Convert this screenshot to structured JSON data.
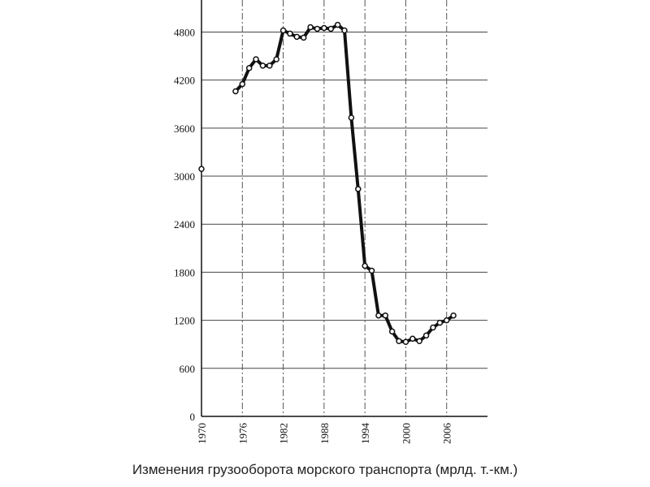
{
  "chart_data": {
    "type": "line",
    "title": "Изменения грузооборота морского транспорта (мрлд. т.-км.)",
    "x": [
      1970,
      1971,
      1972,
      1973,
      1974,
      1975,
      1976,
      1977,
      1978,
      1979,
      1980,
      1981,
      1982,
      1983,
      1984,
      1985,
      1986,
      1987,
      1988,
      1989,
      1990,
      1991,
      1992,
      1993,
      1994,
      1995,
      1996,
      1997,
      1998,
      1999,
      2000,
      2001,
      2002,
      2003,
      2004,
      2005,
      2006,
      2007
    ],
    "series": [
      {
        "color": "#111111",
        "values": [
          3090,
          null,
          null,
          null,
          null,
          4060,
          4150,
          4350,
          4460,
          4380,
          4380,
          4460,
          4820,
          4780,
          4740,
          4730,
          4860,
          4840,
          4850,
          4840,
          4890,
          4820,
          3730,
          2840,
          1880,
          1820,
          1260,
          1260,
          1060,
          940,
          930,
          970,
          940,
          1010,
          1110,
          1170,
          1200,
          1260
        ]
      }
    ],
    "xlim": [
      1970,
      2012
    ],
    "xticks": [
      1970,
      1976,
      1982,
      1988,
      1994,
      2000,
      2006
    ],
    "ylim": [
      0,
      5200
    ],
    "yticks": [
      0,
      600,
      1200,
      1800,
      2400,
      3000,
      3600,
      4200,
      4800
    ],
    "grid": true
  }
}
